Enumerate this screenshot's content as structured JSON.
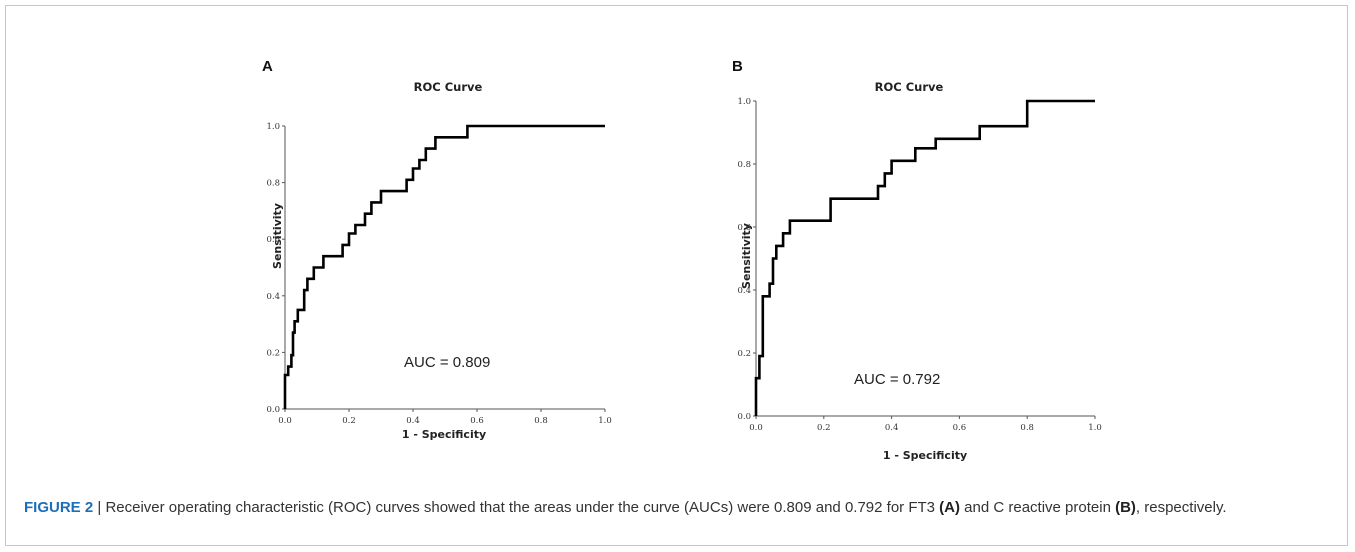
{
  "caption": {
    "figure_label": "FIGURE 2",
    "separator": "|",
    "part1": "Receiver operating characteristic (ROC) curves showed that the areas under the curve (AUCs) were 0.809 and 0.792 for FT3",
    "ref_a": "(A)",
    "part2": "and C reactive protein",
    "ref_b": "(B)",
    "part3": ", respectively."
  },
  "chart_data": [
    {
      "type": "line",
      "panel": "A",
      "title": "ROC Curve",
      "xlabel": "1 - Specificity",
      "ylabel": "Sensitivity",
      "xlim": [
        0,
        1
      ],
      "ylim": [
        0,
        1
      ],
      "xticks": [
        "0.0",
        "0.2",
        "0.4",
        "0.6",
        "0.8",
        "1.0"
      ],
      "yticks": [
        "0.0",
        "0.2",
        "0.4",
        "0.6",
        "0.8",
        "1.0"
      ],
      "grid": false,
      "annotation": "AUC = 0.809",
      "x": [
        0,
        0,
        0.01,
        0.01,
        0.02,
        0.02,
        0.025,
        0.025,
        0.03,
        0.03,
        0.04,
        0.04,
        0.06,
        0.06,
        0.07,
        0.07,
        0.09,
        0.09,
        0.12,
        0.12,
        0.18,
        0.18,
        0.2,
        0.2,
        0.22,
        0.22,
        0.25,
        0.25,
        0.27,
        0.27,
        0.3,
        0.3,
        0.38,
        0.38,
        0.4,
        0.4,
        0.42,
        0.42,
        0.44,
        0.44,
        0.47,
        0.47,
        0.5,
        0.5,
        0.57,
        0.57,
        0.64,
        0.64,
        1.0
      ],
      "y": [
        0,
        0.12,
        0.12,
        0.15,
        0.15,
        0.19,
        0.19,
        0.27,
        0.27,
        0.31,
        0.31,
        0.35,
        0.35,
        0.42,
        0.42,
        0.46,
        0.46,
        0.5,
        0.5,
        0.54,
        0.54,
        0.58,
        0.58,
        0.62,
        0.62,
        0.65,
        0.65,
        0.69,
        0.69,
        0.73,
        0.73,
        0.77,
        0.77,
        0.81,
        0.81,
        0.85,
        0.85,
        0.88,
        0.88,
        0.92,
        0.92,
        0.96,
        0.96,
        0.96,
        0.96,
        1.0,
        1.0,
        1.0,
        1.0
      ]
    },
    {
      "type": "line",
      "panel": "B",
      "title": "ROC Curve",
      "xlabel": "1 - Specificity",
      "ylabel": "Sensitivity",
      "xlim": [
        0,
        1
      ],
      "ylim": [
        0,
        1
      ],
      "xticks": [
        "0.0",
        "0.2",
        "0.4",
        "0.6",
        "0.8",
        "1.0"
      ],
      "yticks": [
        "0.0",
        "0.2",
        "0.4",
        "0.6",
        "0.8",
        "1.0"
      ],
      "grid": false,
      "annotation": "AUC = 0.792",
      "x": [
        0,
        0,
        0.01,
        0.01,
        0.02,
        0.02,
        0.04,
        0.04,
        0.05,
        0.05,
        0.06,
        0.06,
        0.08,
        0.08,
        0.1,
        0.1,
        0.22,
        0.22,
        0.36,
        0.36,
        0.38,
        0.38,
        0.4,
        0.4,
        0.47,
        0.47,
        0.53,
        0.53,
        0.66,
        0.66,
        0.8,
        0.8,
        1.0
      ],
      "y": [
        0,
        0.12,
        0.12,
        0.19,
        0.19,
        0.38,
        0.38,
        0.42,
        0.42,
        0.5,
        0.5,
        0.54,
        0.54,
        0.58,
        0.58,
        0.62,
        0.62,
        0.69,
        0.69,
        0.73,
        0.73,
        0.77,
        0.77,
        0.81,
        0.81,
        0.85,
        0.85,
        0.88,
        0.88,
        0.92,
        0.92,
        1.0,
        1.0
      ]
    }
  ]
}
